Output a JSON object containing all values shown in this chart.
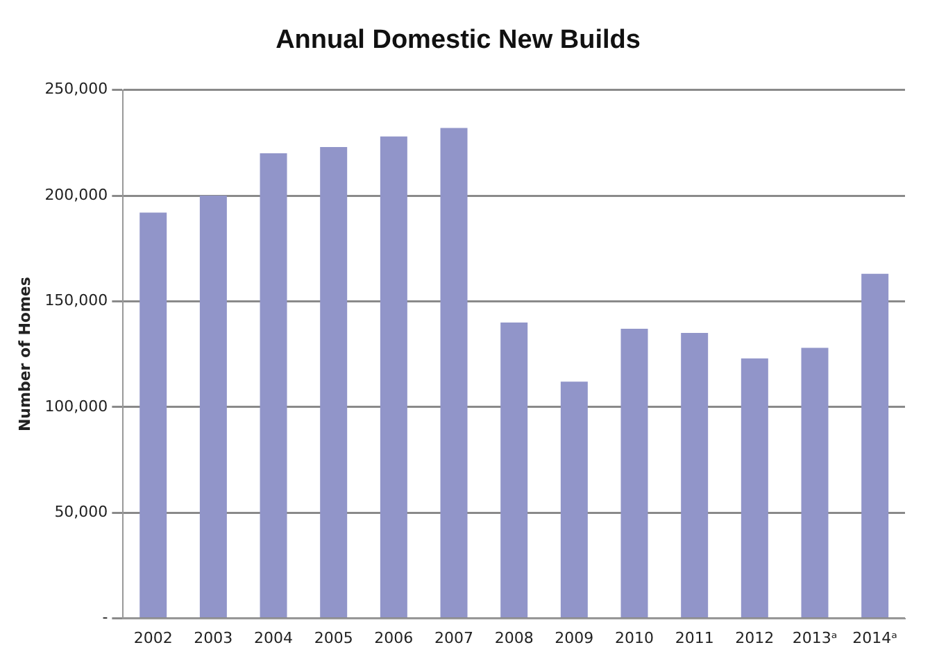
{
  "chart_data": {
    "type": "bar",
    "title": "Annual Domestic New Builds",
    "ylabel": "Number of Homes",
    "categories": [
      "2002",
      "2003",
      "2004",
      "2005",
      "2006",
      "2007",
      "2008",
      "2009",
      "2010",
      "2011",
      "2012",
      "2013ᵃ",
      "2014ᵃ"
    ],
    "values": [
      192000,
      200000,
      220000,
      223000,
      228000,
      232000,
      140000,
      112000,
      137000,
      135000,
      123000,
      128000,
      163000
    ],
    "color": "#9195c9",
    "ylim": [
      0,
      250000
    ],
    "yticks": [
      {
        "value": 0,
        "label": "-"
      },
      {
        "value": 50000,
        "label": "50,000"
      },
      {
        "value": 100000,
        "label": "100,000"
      },
      {
        "value": 150000,
        "label": "150,000"
      },
      {
        "value": 200000,
        "label": "200,000"
      },
      {
        "value": 250000,
        "label": "250,000"
      }
    ],
    "grid": "y"
  }
}
